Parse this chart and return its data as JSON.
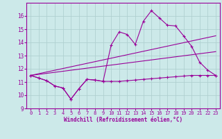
{
  "xlabel": "Windchill (Refroidissement éolien,°C)",
  "xlim": [
    -0.5,
    23.5
  ],
  "ylim": [
    9,
    17
  ],
  "yticks": [
    9,
    10,
    11,
    12,
    13,
    14,
    15,
    16
  ],
  "xticks": [
    0,
    1,
    2,
    3,
    4,
    5,
    6,
    7,
    8,
    9,
    10,
    11,
    12,
    13,
    14,
    15,
    16,
    17,
    18,
    19,
    20,
    21,
    22,
    23
  ],
  "bg_color": "#cce9e9",
  "line_color": "#990099",
  "grid_color": "#b0d0d0",
  "line_upper_x": [
    0,
    1,
    2,
    3,
    4,
    5,
    6,
    7,
    8,
    9,
    10,
    11,
    12,
    13,
    14,
    15,
    16,
    17,
    18,
    19,
    20,
    21,
    22,
    23
  ],
  "line_upper_y": [
    11.5,
    11.3,
    11.1,
    10.7,
    10.55,
    9.7,
    10.5,
    11.2,
    11.15,
    11.05,
    13.8,
    14.8,
    14.6,
    13.85,
    15.6,
    16.4,
    15.85,
    15.3,
    15.25,
    14.5,
    13.7,
    12.5,
    11.9,
    11.5
  ],
  "line_lower_x": [
    0,
    1,
    2,
    3,
    4,
    5,
    6,
    7,
    8,
    9,
    10,
    11,
    12,
    13,
    14,
    15,
    16,
    17,
    18,
    19,
    20,
    21,
    22,
    23
  ],
  "line_lower_y": [
    11.5,
    11.3,
    11.1,
    10.7,
    10.55,
    9.7,
    10.5,
    11.2,
    11.15,
    11.05,
    11.05,
    11.05,
    11.1,
    11.15,
    11.2,
    11.25,
    11.3,
    11.35,
    11.4,
    11.45,
    11.5,
    11.5,
    11.5,
    11.5
  ],
  "trend1_x": [
    0,
    23
  ],
  "trend1_y": [
    11.5,
    14.5
  ],
  "trend2_x": [
    0,
    23
  ],
  "trend2_y": [
    11.5,
    13.3
  ]
}
